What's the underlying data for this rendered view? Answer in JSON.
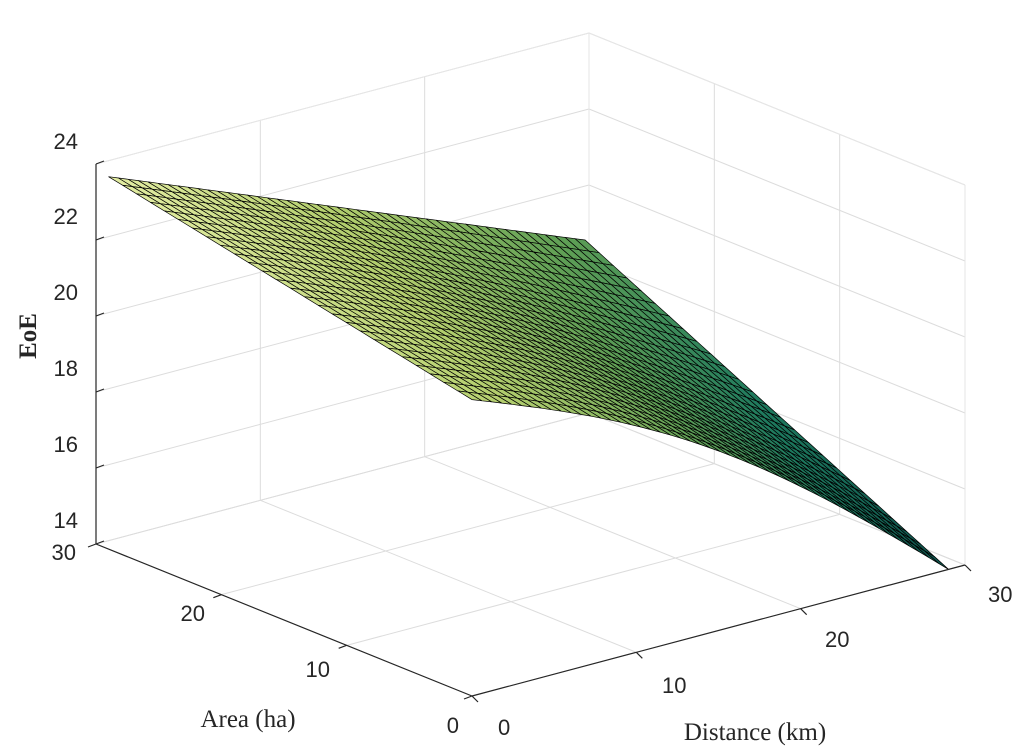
{
  "chart_data": {
    "type": "surface",
    "xlabel": "Distance (km)",
    "ylabel": "Area (ha)",
    "zlabel": "EoE",
    "xlim": [
      0,
      30
    ],
    "ylim": [
      0,
      30
    ],
    "zlim": [
      14,
      24
    ],
    "xticks": [
      "0",
      "10",
      "20",
      "30"
    ],
    "yticks": [
      "0",
      "10",
      "20",
      "30"
    ],
    "zticks": [
      "14",
      "16",
      "18",
      "20",
      "22",
      "24"
    ],
    "grid": true,
    "colormap_colors": [
      "#0d4f4a",
      "#1e7a5e",
      "#5f9f55",
      "#b4cf6e",
      "#e8f0a8"
    ],
    "surface_corners": [
      {
        "distance": 0,
        "area": 0,
        "eoe": 21.8
      },
      {
        "distance": 0,
        "area": 29,
        "eoe": 23.8
      },
      {
        "distance": 29,
        "area": 29,
        "eoe": 18.8
      },
      {
        "distance": 29,
        "area": 0,
        "eoe": 14
      }
    ]
  }
}
